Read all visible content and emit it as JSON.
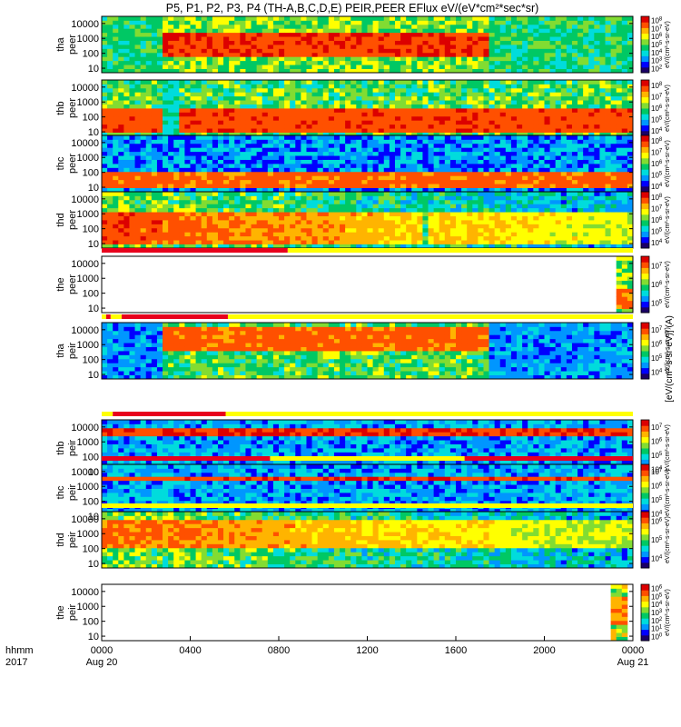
{
  "chart_data": {
    "type": "heatmap",
    "title": "P5, P1, P2, P3, P4 (TH-A,B,C,D,E) PEIR,PEER EFlux eV/(eV*cm²*sec*sr)",
    "colorbar_label": "[eV/(cm²-s-sr-eV)] (A)",
    "colorbar_label_axis": "eV/(cm²-s-sr-eV)",
    "xlabel": "hhmm",
    "year_label": "2017",
    "x_ticks": [
      "0000",
      "0400",
      "0800",
      "1200",
      "1600",
      "2000",
      "0000"
    ],
    "x_date_labels": [
      "Aug 20",
      "Aug 21"
    ],
    "x_range": [
      "2017-08-20 00:00",
      "2017-08-21 00:00"
    ],
    "y_scale": "log",
    "y_range_eV": [
      5,
      30000
    ],
    "y_ticks": [
      "10",
      "100",
      "1000",
      "10000"
    ],
    "colormap": [
      "#1a0066",
      "#0000ff",
      "#0096ff",
      "#00dcdc",
      "#00c864",
      "#82dc32",
      "#ffff00",
      "#ffb400",
      "#ff5000",
      "#dc0000"
    ],
    "panels": [
      {
        "probe": "tha",
        "species": "peer",
        "label_top": "tha",
        "label_bottom": "peer",
        "cbar_ticks": [
          "10^2",
          "10^3",
          "10^4",
          "10^5",
          "10^6",
          "10^7",
          "10^8"
        ],
        "pattern": "intermittent",
        "base": 0.55,
        "band_lo": 50,
        "band_hi": 2000,
        "band_level": 0.95,
        "bg": 0.45,
        "active": [
          [
            2.8,
            17.5
          ]
        ],
        "gaps": [],
        "mode_bar": null
      },
      {
        "probe": "thb",
        "species": "peer",
        "label_top": "thb",
        "label_bottom": "peer",
        "cbar_ticks": [
          "10^4",
          "10^5",
          "10^6",
          "10^7",
          "10^8"
        ],
        "pattern": "steady",
        "base": 0.5,
        "band_lo": 10,
        "band_hi": 400,
        "band_level": 0.92,
        "bg": 0.4,
        "active": [
          [
            0,
            24
          ]
        ],
        "gaps": [
          [
            2.8,
            3.4
          ]
        ],
        "mode_bar": null
      },
      {
        "probe": "thc",
        "species": "peer",
        "label_top": "thc",
        "label_bottom": "peer",
        "cbar_ticks": [
          "10^4",
          "10^5",
          "10^6",
          "10^7",
          "10^8"
        ],
        "pattern": "noisy-top",
        "base": 0.28,
        "band_lo": 10,
        "band_hi": 100,
        "band_level": 0.9,
        "bg": 0.15,
        "active": [
          [
            0,
            24
          ]
        ],
        "gaps": [],
        "mode_bar": null
      },
      {
        "probe": "thd",
        "species": "peer",
        "label_top": "thd",
        "label_bottom": "peer",
        "cbar_ticks": [
          "10^4",
          "10^5",
          "10^6",
          "10^7",
          "10^8"
        ],
        "pattern": "decaying",
        "base": 0.55,
        "band_lo": 10,
        "band_hi": 1000,
        "band_level": 0.93,
        "bg": 0.45,
        "active": [
          [
            0,
            24
          ]
        ],
        "gaps": [
          [
            14.4,
            14.7
          ]
        ],
        "mode_bar": null
      },
      {
        "probe": "the",
        "species": "peer",
        "label_top": "the",
        "label_bottom": "peer",
        "cbar_ticks": [
          "10^5",
          "10^6",
          "10^7"
        ],
        "pattern": "late-only",
        "base": 0.55,
        "band_lo": 10,
        "band_hi": 200,
        "band_level": 0.9,
        "bg": 0.5,
        "active": [
          [
            23.2,
            24
          ]
        ],
        "gaps": [],
        "mode_bar": {
          "red": [
            [
              0,
              8.4
            ]
          ],
          "yellow": [
            [
              8.4,
              24
            ]
          ]
        }
      },
      {
        "probe": "tha",
        "species": "peir",
        "label_top": "tha",
        "label_bottom": "peir",
        "cbar_ticks": [
          "10^4",
          "10^5",
          "10^6",
          "10^7"
        ],
        "pattern": "ion-intermittent",
        "base": 0.5,
        "band_lo": 300,
        "band_hi": 20000,
        "band_level": 0.9,
        "bg": 0.25,
        "active": [
          [
            2.8,
            17.5
          ]
        ],
        "gaps": [],
        "mode_bar": {
          "red": [
            [
              0.2,
              0.4
            ],
            [
              0.9,
              5.7
            ]
          ],
          "yellow": [
            [
              0,
              0.2
            ],
            [
              0.4,
              0.9
            ],
            [
              5.7,
              24
            ]
          ]
        }
      },
      {
        "probe": "thb",
        "species": "peir",
        "label_top": "thb",
        "label_bottom": "peir",
        "cbar_ticks": [
          "10^4",
          "10^5",
          "10^6",
          "10^7"
        ],
        "pattern": "ion-band",
        "base": 0.3,
        "band_lo": 3000,
        "band_hi": 7000,
        "band_level": 0.95,
        "bg": 0.22,
        "active": [
          [
            0,
            24
          ]
        ],
        "gaps": [],
        "mode_bar": {
          "red": [
            [
              0.5,
              5.6
            ]
          ],
          "yellow": [
            [
              0,
              0.5
            ],
            [
              5.6,
              24
            ]
          ]
        }
      },
      {
        "probe": "thc",
        "species": "peir",
        "label_top": "thc",
        "label_bottom": "peir",
        "cbar_ticks": [
          "10^4",
          "10^5",
          "10^6",
          "10^7"
        ],
        "pattern": "ion-band",
        "base": 0.28,
        "band_lo": 3000,
        "band_hi": 6000,
        "band_level": 0.93,
        "bg": 0.2,
        "active": [
          [
            0,
            24
          ]
        ],
        "gaps": [],
        "mode_bar": {
          "red": [
            [
              0,
              7.6
            ],
            [
              16.4,
              24
            ]
          ],
          "yellow": [
            [
              7.6,
              16.4
            ]
          ]
        }
      },
      {
        "probe": "thd",
        "species": "peir",
        "label_top": "thd",
        "label_bottom": "peir",
        "cbar_ticks": [
          "10^4",
          "10^5",
          "10^6"
        ],
        "pattern": "ion-decaying",
        "base": 0.55,
        "band_lo": 100,
        "band_hi": 10000,
        "band_level": 0.9,
        "bg": 0.5,
        "active": [
          [
            0,
            24
          ]
        ],
        "gaps": [],
        "mode_bar": {
          "red": [],
          "yellow": [
            [
              0,
              24
            ]
          ]
        }
      },
      {
        "probe": "the",
        "species": "peir",
        "label_top": "the",
        "label_bottom": "peir",
        "cbar_ticks": [
          "10^0",
          "10^1",
          "10^2",
          "10^3",
          "10^4",
          "10^5",
          "10^6"
        ],
        "pattern": "late-only",
        "base": 0.6,
        "band_lo": 50,
        "band_hi": 5000,
        "band_level": 0.85,
        "bg": 0.0,
        "active": [
          [
            23.0,
            23.8
          ]
        ],
        "gaps": [],
        "mode_bar": null
      }
    ]
  },
  "colors": {
    "frame": "#000000",
    "mode_red": "#e8001c",
    "mode_yellow": "#ffff00",
    "missing": "#000000"
  }
}
